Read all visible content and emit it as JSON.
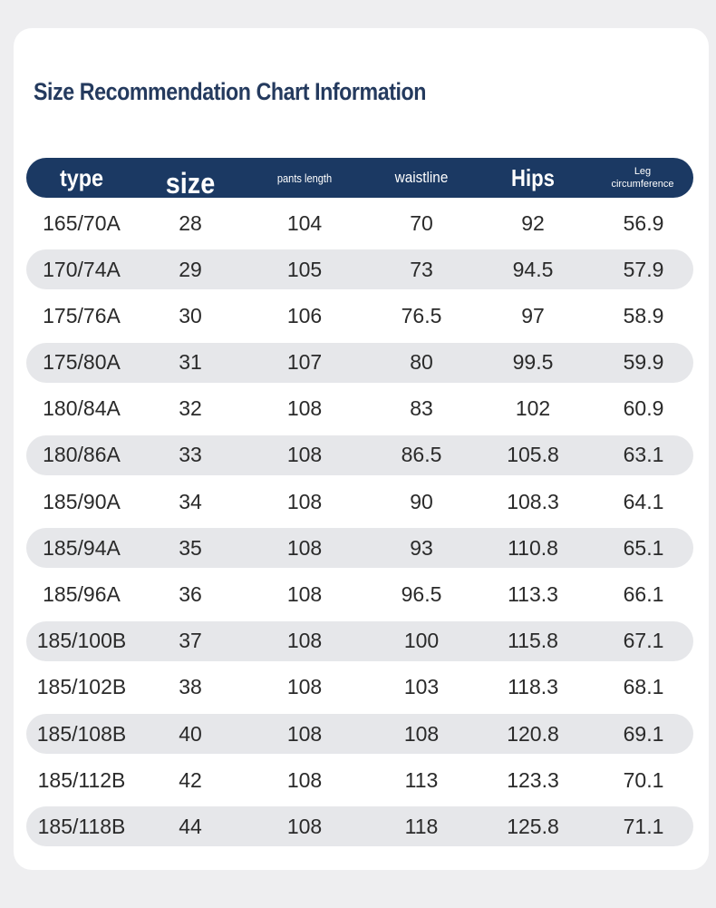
{
  "title": "Size Recommendation Chart Information",
  "headers": {
    "type": "type",
    "size": "size",
    "pants_length": "pants length",
    "waistline": "waistline",
    "hips": "Hips",
    "leg_line1": "Leg",
    "leg_line2": "circumference"
  },
  "colors": {
    "header_bg": "#1b3963",
    "title": "#243a5e",
    "row_shade": "#e6e7ea"
  },
  "rows": [
    [
      "165/70A",
      "28",
      "104",
      "70",
      "92",
      "56.9"
    ],
    [
      "170/74A",
      "29",
      "105",
      "73",
      "94.5",
      "57.9"
    ],
    [
      "175/76A",
      "30",
      "106",
      "76.5",
      "97",
      "58.9"
    ],
    [
      "175/80A",
      "31",
      "107",
      "80",
      "99.5",
      "59.9"
    ],
    [
      "180/84A",
      "32",
      "108",
      "83",
      "102",
      "60.9"
    ],
    [
      "180/86A",
      "33",
      "108",
      "86.5",
      "105.8",
      "63.1"
    ],
    [
      "185/90A",
      "34",
      "108",
      "90",
      "108.3",
      "64.1"
    ],
    [
      "185/94A",
      "35",
      "108",
      "93",
      "110.8",
      "65.1"
    ],
    [
      "185/96A",
      "36",
      "108",
      "96.5",
      "113.3",
      "66.1"
    ],
    [
      "185/100B",
      "37",
      "108",
      "100",
      "115.8",
      "67.1"
    ],
    [
      "185/102B",
      "38",
      "108",
      "103",
      "118.3",
      "68.1"
    ],
    [
      "185/108B",
      "40",
      "108",
      "108",
      "120.8",
      "69.1"
    ],
    [
      "185/112B",
      "42",
      "108",
      "113",
      "123.3",
      "70.1"
    ],
    [
      "185/118B",
      "44",
      "108",
      "118",
      "125.8",
      "71.1"
    ]
  ]
}
